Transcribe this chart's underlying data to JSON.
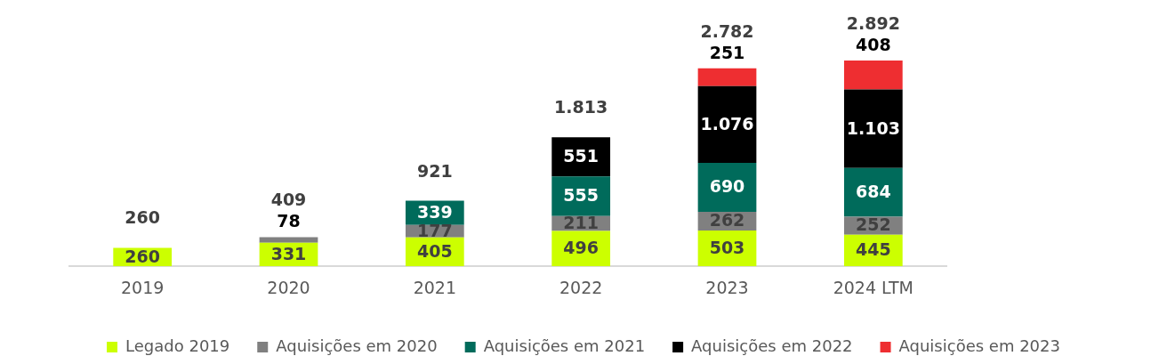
{
  "chart_data": {
    "type": "bar",
    "stacked": true,
    "categories": [
      "2019",
      "2020",
      "2021",
      "2022",
      "2023",
      "2024 LTM"
    ],
    "series": [
      {
        "name": "Legado 2019",
        "color": "#ccff00",
        "values": [
          260,
          331,
          405,
          496,
          503,
          445
        ],
        "value_labels": [
          "260",
          "331",
          "405",
          "496",
          "503",
          "445"
        ]
      },
      {
        "name": "Aquisições em 2020",
        "color": "#808080",
        "values": [
          null,
          78,
          177,
          211,
          262,
          252
        ],
        "value_labels": [
          null,
          "78",
          "177",
          "211",
          "262",
          "252"
        ]
      },
      {
        "name": "Aquisições em 2021",
        "color": "#006b5b",
        "values": [
          null,
          null,
          339,
          555,
          690,
          684
        ],
        "value_labels": [
          null,
          null,
          "339",
          "555",
          "690",
          "684"
        ]
      },
      {
        "name": "Aquisições em 2022",
        "color": "#000000",
        "values": [
          null,
          null,
          null,
          551,
          1076,
          1103
        ],
        "value_labels": [
          null,
          null,
          null,
          "551",
          "1.076",
          "1.103"
        ]
      },
      {
        "name": "Aquisições em 2023",
        "color": "#ee2e31",
        "values": [
          null,
          null,
          null,
          null,
          251,
          408
        ],
        "value_labels": [
          null,
          null,
          null,
          null,
          "251",
          "408"
        ]
      }
    ],
    "totals": [
      "260",
      "409",
      "921",
      "1.813",
      "2.782",
      "2.892"
    ],
    "grid": false,
    "legend": "bottom",
    "tick_labels": "x"
  }
}
